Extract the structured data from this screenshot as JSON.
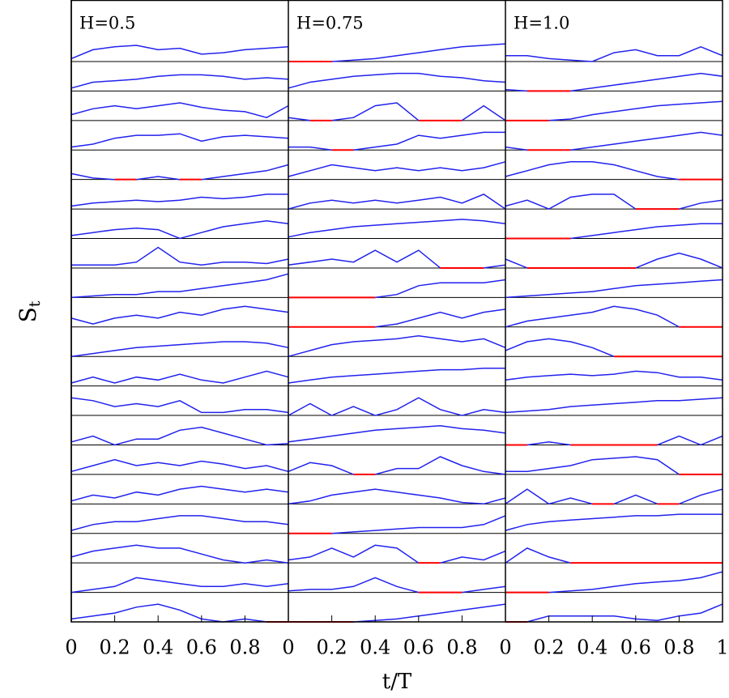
{
  "chart_data": {
    "type": "line",
    "x_label": "t/T",
    "y_label": "S",
    "y_label_sub": "t",
    "color": "#2222ee",
    "zero_color": "#ff0000",
    "xlim": [
      0,
      1
    ],
    "ylim": [
      0,
      1
    ],
    "x": [
      0,
      0.1,
      0.2,
      0.3,
      0.4,
      0.5,
      0.6,
      0.7,
      0.8,
      0.9,
      1
    ],
    "panels": [
      {
        "title": "H=0.5",
        "xticks": [
          0,
          0.2,
          0.4,
          0.6,
          0.8
        ],
        "paths": [
          [
            0.1,
            0.4,
            0.5,
            0.55,
            0.4,
            0.45,
            0.25,
            0.3,
            0.4,
            0.45,
            0.5
          ],
          [
            0.1,
            0.3,
            0.35,
            0.4,
            0.5,
            0.55,
            0.55,
            0.5,
            0.4,
            0.45,
            0.4
          ],
          [
            0.2,
            0.4,
            0.5,
            0.4,
            0.5,
            0.6,
            0.45,
            0.35,
            0.3,
            0.1,
            0.5
          ],
          [
            0.1,
            0.2,
            0.4,
            0.5,
            0.5,
            0.55,
            0.3,
            0.45,
            0.5,
            0.45,
            0.4
          ],
          [
            0.2,
            0.05,
            0,
            0,
            0.1,
            0,
            0,
            0.1,
            0.2,
            0.3,
            0.5
          ],
          [
            0.1,
            0.2,
            0.25,
            0.3,
            0.25,
            0.3,
            0.4,
            0.35,
            0.4,
            0.5,
            0.5
          ],
          [
            0.1,
            0.2,
            0.3,
            0.35,
            0.3,
            0,
            0.2,
            0.4,
            0.5,
            0.6,
            0.5
          ],
          [
            0.1,
            0.1,
            0.1,
            0.2,
            0.7,
            0.2,
            0.1,
            0.2,
            0.2,
            0.15,
            0.3
          ],
          [
            0,
            0.05,
            0.1,
            0.1,
            0.2,
            0.2,
            0.3,
            0.4,
            0.5,
            0.6,
            0.8
          ],
          [
            0.3,
            0.1,
            0.3,
            0.4,
            0.3,
            0.5,
            0.4,
            0.6,
            0.7,
            0.6,
            0.5
          ],
          [
            0,
            0.1,
            0.2,
            0.3,
            0.35,
            0.4,
            0.45,
            0.5,
            0.5,
            0.45,
            0.3
          ],
          [
            0.1,
            0.3,
            0.1,
            0.3,
            0.2,
            0.4,
            0.2,
            0.1,
            0.3,
            0.5,
            0.3
          ],
          [
            0.6,
            0.5,
            0.3,
            0.4,
            0.3,
            0.5,
            0.1,
            0.1,
            0.2,
            0.2,
            0.1
          ],
          [
            0.1,
            0.3,
            0,
            0.2,
            0.2,
            0.5,
            0.6,
            0.4,
            0.2,
            0,
            0.05
          ],
          [
            0.1,
            0.3,
            0.5,
            0.3,
            0.4,
            0.3,
            0.45,
            0.35,
            0.2,
            0.3,
            0.1
          ],
          [
            0.1,
            0.3,
            0.2,
            0.4,
            0.3,
            0.5,
            0.6,
            0.5,
            0.4,
            0.5,
            0.4
          ],
          [
            0.1,
            0.3,
            0.4,
            0.4,
            0.5,
            0.6,
            0.6,
            0.5,
            0.4,
            0.4,
            0.3
          ],
          [
            0.2,
            0.4,
            0.5,
            0.6,
            0.5,
            0.5,
            0.3,
            0.1,
            0,
            0.1,
            0
          ],
          [
            0,
            0.1,
            0.2,
            0.5,
            0.4,
            0.3,
            0.2,
            0.2,
            0.3,
            0.2,
            0.3
          ],
          [
            0.1,
            0.2,
            0.3,
            0.5,
            0.6,
            0.4,
            0.1,
            0,
            0.1,
            0,
            0
          ]
        ]
      },
      {
        "title": "H=0.75",
        "xticks": [
          0,
          0.2,
          0.4,
          0.6,
          0.8
        ],
        "paths": [
          [
            0,
            0,
            0,
            0.05,
            0.1,
            0.2,
            0.3,
            0.4,
            0.5,
            0.55,
            0.6
          ],
          [
            0.1,
            0.3,
            0.4,
            0.5,
            0.55,
            0.6,
            0.6,
            0.5,
            0.45,
            0.35,
            0.3
          ],
          [
            0.1,
            0,
            0,
            0.1,
            0.5,
            0.6,
            0,
            0,
            0,
            0.5,
            0
          ],
          [
            0.1,
            0.1,
            0,
            0,
            0.1,
            0.2,
            0.5,
            0.4,
            0.5,
            0.6,
            0.6
          ],
          [
            0.1,
            0.3,
            0.5,
            0.4,
            0.3,
            0.4,
            0.3,
            0.4,
            0.3,
            0.4,
            0.6
          ],
          [
            0,
            0.2,
            0.3,
            0.2,
            0.3,
            0.2,
            0.3,
            0.4,
            0.2,
            0.5,
            0
          ],
          [
            0.05,
            0.2,
            0.3,
            0.4,
            0.45,
            0.5,
            0.55,
            0.6,
            0.65,
            0.6,
            0.5
          ],
          [
            0.1,
            0.2,
            0.3,
            0.2,
            0.6,
            0.2,
            0.6,
            0,
            0,
            0,
            0.1
          ],
          [
            0,
            0,
            0,
            0,
            0,
            0.1,
            0.4,
            0.5,
            0.5,
            0.5,
            0.6
          ],
          [
            0,
            0,
            0,
            0,
            0,
            0.1,
            0.3,
            0.5,
            0.3,
            0.5,
            0.6
          ],
          [
            0,
            0.2,
            0.4,
            0.5,
            0.55,
            0.6,
            0.7,
            0.6,
            0.5,
            0.6,
            0.3
          ],
          [
            0.1,
            0.2,
            0.3,
            0.35,
            0.4,
            0.45,
            0.5,
            0.55,
            0.55,
            0.6,
            0.6
          ],
          [
            0,
            0.4,
            0,
            0.3,
            0,
            0.2,
            0.6,
            0.2,
            0,
            0.2,
            0.1
          ],
          [
            0.1,
            0.2,
            0.3,
            0.4,
            0.5,
            0.55,
            0.6,
            0.65,
            0.55,
            0.5,
            0.4
          ],
          [
            0.1,
            0.4,
            0.3,
            0,
            0,
            0.2,
            0.2,
            0.6,
            0.3,
            0.1,
            0
          ],
          [
            0,
            0.1,
            0.3,
            0.4,
            0.5,
            0.4,
            0.3,
            0.2,
            0.05,
            0,
            0.2
          ],
          [
            0,
            0,
            0,
            0.05,
            0.1,
            0.15,
            0.2,
            0.2,
            0.2,
            0.3,
            0.6
          ],
          [
            0.1,
            0.2,
            0.5,
            0.2,
            0.6,
            0.5,
            0,
            0,
            0.2,
            0.1,
            0.4
          ],
          [
            0.05,
            0.1,
            0.1,
            0.2,
            0.5,
            0.2,
            0,
            0,
            0,
            0.1,
            0.2
          ],
          [
            0,
            0,
            0,
            0,
            0.05,
            0.1,
            0.2,
            0.3,
            0.4,
            0.5,
            0.6
          ]
        ]
      },
      {
        "title": "H=1.0",
        "xticks": [
          0,
          0.2,
          0.4,
          0.6,
          0.8,
          1
        ],
        "paths": [
          [
            0.2,
            0.2,
            0.1,
            0.05,
            0,
            0.3,
            0.4,
            0.2,
            0.2,
            0.5,
            0.2
          ],
          [
            0.05,
            0,
            0,
            0,
            0.1,
            0.2,
            0.3,
            0.4,
            0.5,
            0.6,
            0.5
          ],
          [
            0,
            0,
            0,
            0.05,
            0.2,
            0.3,
            0.4,
            0.5,
            0.55,
            0.6,
            0.65
          ],
          [
            0.1,
            0,
            0,
            0,
            0.1,
            0.2,
            0.3,
            0.4,
            0.5,
            0.6,
            0.5
          ],
          [
            0.1,
            0.3,
            0.5,
            0.6,
            0.6,
            0.5,
            0.3,
            0.1,
            0,
            0,
            0
          ],
          [
            0.1,
            0.3,
            0,
            0.4,
            0.5,
            0.5,
            0,
            0,
            0,
            0.2,
            0.3
          ],
          [
            0,
            0,
            0,
            0,
            0.1,
            0.2,
            0.3,
            0.4,
            0.45,
            0.5,
            0.5
          ],
          [
            0.3,
            0,
            0,
            0,
            0,
            0,
            0,
            0.3,
            0.5,
            0.3,
            0
          ],
          [
            0,
            0.05,
            0.1,
            0.15,
            0.2,
            0.3,
            0.4,
            0.45,
            0.5,
            0.55,
            0.6
          ],
          [
            0,
            0.2,
            0.3,
            0.4,
            0.5,
            0.7,
            0.6,
            0.4,
            0,
            0,
            0
          ],
          [
            0.2,
            0.5,
            0.6,
            0.5,
            0.3,
            0,
            0,
            0,
            0,
            0,
            0
          ],
          [
            0.2,
            0.3,
            0.35,
            0.4,
            0.35,
            0.4,
            0.5,
            0.45,
            0.3,
            0.3,
            0.2
          ],
          [
            0.1,
            0.15,
            0.2,
            0.3,
            0.35,
            0.4,
            0.45,
            0.5,
            0.5,
            0.55,
            0.6
          ],
          [
            0,
            0,
            0.1,
            0,
            0,
            0,
            0,
            0,
            0.3,
            0,
            0.3
          ],
          [
            0.1,
            0.1,
            0.2,
            0.3,
            0.5,
            0.55,
            0.6,
            0.5,
            0,
            0,
            0
          ],
          [
            0,
            0.5,
            0,
            0.2,
            0,
            0,
            0.3,
            0,
            0,
            0.3,
            0.5
          ],
          [
            0.1,
            0.3,
            0.4,
            0.45,
            0.5,
            0.55,
            0.6,
            0.6,
            0.65,
            0.65,
            0.65
          ],
          [
            0,
            0.5,
            0.2,
            0,
            0,
            0,
            0,
            0,
            0,
            0,
            0
          ],
          [
            0,
            0,
            0,
            0.05,
            0.1,
            0.2,
            0.3,
            0.35,
            0.4,
            0.5,
            0.7
          ],
          [
            0,
            0,
            0.2,
            0.2,
            0.2,
            0.2,
            0.1,
            0.05,
            0.2,
            0.3,
            0.6
          ]
        ]
      }
    ]
  }
}
